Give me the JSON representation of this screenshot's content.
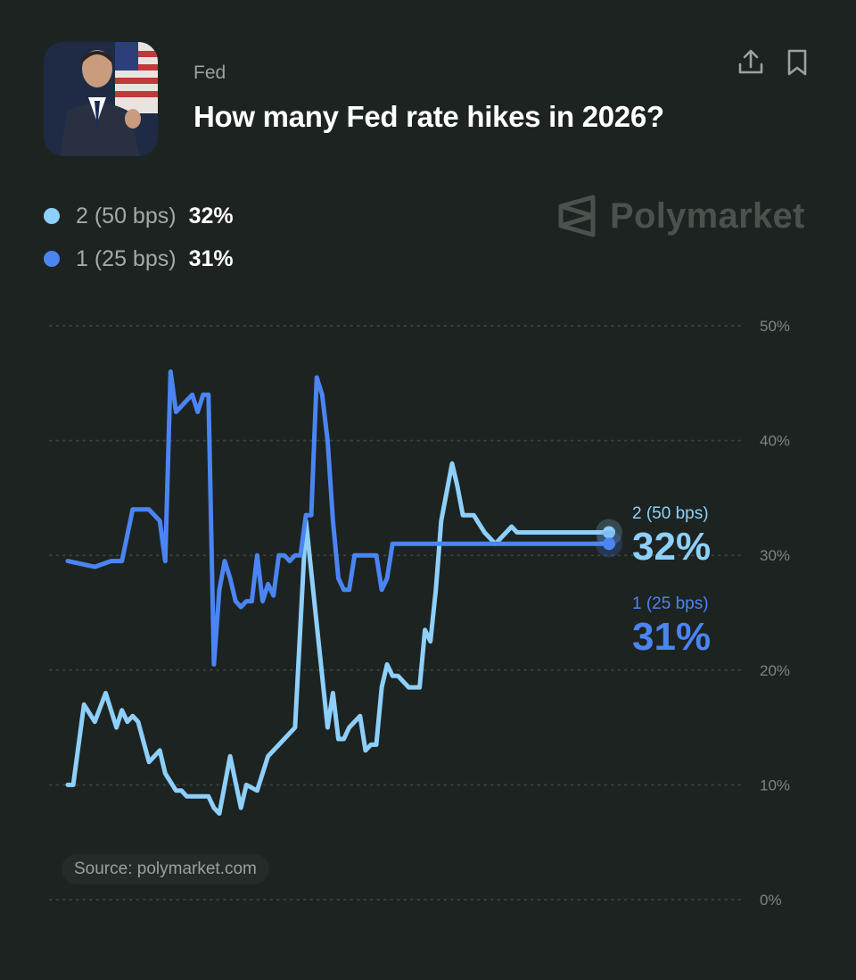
{
  "header": {
    "category": "Fed",
    "title": "How many Fed rate hikes in 2026?"
  },
  "brand": {
    "name": "Polymarket"
  },
  "legend": [
    {
      "label": "2 (50 bps)",
      "value": "32%",
      "color": "#8ed0fb"
    },
    {
      "label": "1 (25 bps)",
      "value": "31%",
      "color": "#4b85f4"
    }
  ],
  "end_labels": [
    {
      "label": "2 (50 bps)",
      "value": "32%",
      "color": "#8ed0fb"
    },
    {
      "label": "1 (25 bps)",
      "value": "31%",
      "color": "#4b85f4"
    }
  ],
  "source": "Source: polymarket.com",
  "chart_data": {
    "type": "line",
    "ylim": [
      0,
      50
    ],
    "yticks": [
      "0%",
      "10%",
      "20%",
      "30%",
      "40%",
      "50%"
    ],
    "grid": true,
    "legend_position": "top-left",
    "series": [
      {
        "name": "2 (50 bps)",
        "color": "#8ed0fb",
        "x": [
          0,
          1,
          3,
          5,
          7,
          9,
          10,
          11,
          12,
          13,
          15,
          17,
          18,
          20,
          21,
          22,
          24,
          26,
          27,
          28,
          30,
          32,
          33,
          35,
          37,
          40,
          42,
          44,
          46,
          48,
          49,
          50,
          51,
          52,
          54,
          55,
          56,
          57,
          58,
          59,
          60,
          61,
          62,
          63,
          64,
          65,
          66,
          67,
          68,
          69,
          70,
          71,
          72,
          73,
          75,
          77,
          79,
          80,
          81,
          82,
          83,
          84,
          85,
          86,
          87,
          88,
          89,
          90,
          91,
          92,
          93,
          95,
          97,
          99,
          100
        ],
        "y": [
          10,
          10,
          17,
          15.5,
          18,
          15,
          16.5,
          15.5,
          16,
          15.5,
          12,
          13,
          11,
          9.5,
          9.5,
          9,
          9,
          9,
          8,
          7.5,
          12.5,
          8,
          10,
          9.5,
          12.5,
          14,
          15,
          33,
          24,
          15,
          18,
          14,
          14,
          15,
          16,
          13,
          13.5,
          13.5,
          18.5,
          20.5,
          19.5,
          19.5,
          19,
          18.5,
          18.5,
          18.5,
          23.5,
          22.5,
          27,
          33,
          35.5,
          38,
          36,
          33.5,
          33.5,
          32,
          31,
          31.5,
          32,
          32.5,
          32,
          32,
          32,
          32,
          32,
          32,
          32,
          32,
          32,
          32,
          32,
          32,
          32,
          32,
          32
        ]
      },
      {
        "name": "1 (25 bps)",
        "color": "#4b85f4",
        "x": [
          0,
          5,
          8,
          10,
          12,
          15,
          17,
          18,
          19,
          20,
          21,
          22,
          23,
          24,
          25,
          26,
          27,
          28,
          29,
          30,
          31,
          32,
          33,
          34,
          35,
          36,
          37,
          38,
          39,
          40,
          41,
          42,
          43,
          44,
          45,
          46,
          47,
          48,
          49,
          50,
          51,
          52,
          53,
          54,
          55,
          56,
          57,
          58,
          59,
          60,
          61,
          62,
          63,
          64,
          65,
          66,
          67,
          68,
          69,
          70,
          71,
          72,
          73,
          75,
          77,
          79,
          80,
          81,
          82,
          83,
          85,
          87,
          89,
          91,
          93,
          95,
          97,
          100
        ],
        "y": [
          29.5,
          29,
          29.5,
          29.5,
          34,
          34,
          33,
          29.5,
          46,
          42.5,
          43,
          43.5,
          44,
          42.5,
          44,
          44,
          20.5,
          27,
          29.5,
          28,
          26,
          25.5,
          26,
          26,
          30,
          26,
          27.5,
          26.5,
          30,
          30,
          29.5,
          30,
          30,
          33.5,
          33.5,
          45.5,
          44,
          40,
          33,
          28,
          27,
          27,
          30,
          30,
          30,
          30,
          30,
          27,
          28,
          31,
          31,
          31,
          31,
          31,
          31,
          31,
          31,
          31,
          31,
          31,
          31,
          31,
          31,
          31,
          31,
          31,
          31,
          31,
          31,
          31,
          31,
          31,
          31,
          31,
          31,
          31,
          31,
          31
        ]
      }
    ]
  }
}
